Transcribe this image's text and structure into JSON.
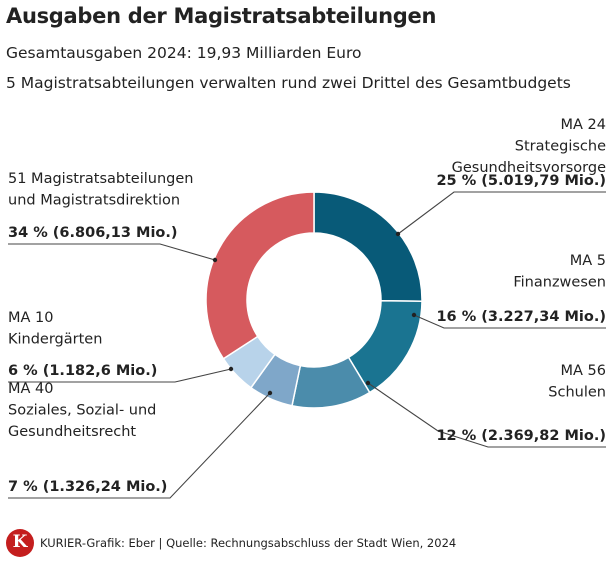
{
  "header": {
    "title": "Ausgaben der Magistratsabteilungen",
    "subtitle1": "Gesamtausgaben 2024: 19,93 Milliarden Euro",
    "subtitle2": "5 Magistratsabteilungen verwalten rund zwei Drittel des Gesamtbudgets"
  },
  "footer": {
    "logo_letter": "K",
    "logo_color": "#c41e1e",
    "source": "KURIER-Grafik: Eber | Quelle: Rechnungsabschluss der Stadt Wien, 2024"
  },
  "chart_data": {
    "type": "pie",
    "variant": "donut",
    "title": "Ausgaben der Magistratsabteilungen",
    "total": "19,93 Milliarden Euro",
    "slices": [
      {
        "name": "MA 24",
        "label_lines": [
          "MA 24",
          "Strategische",
          "Gesundheitsvorsorge"
        ],
        "percent": 25,
        "amount": "25 % (5.019,79 Mio.)",
        "amount_mio": 5019.79,
        "color": "#085a78"
      },
      {
        "name": "MA 5",
        "label_lines": [
          "MA 5",
          "Finanzwesen"
        ],
        "percent": 16,
        "amount": "16 % (3.227,34 Mio.)",
        "amount_mio": 3227.34,
        "color": "#1a7491"
      },
      {
        "name": "MA 56",
        "label_lines": [
          "MA 56",
          "Schulen"
        ],
        "percent": 12,
        "amount": "12 % (2.369,82 Mio.)",
        "amount_mio": 2369.82,
        "color": "#4b8cab"
      },
      {
        "name": "MA 40",
        "label_lines": [
          "MA 40",
          "Soziales, Sozial- und",
          "Gesundheitsrecht"
        ],
        "percent": 7,
        "amount": "7 % (1.326,24 Mio.)",
        "amount_mio": 1326.24,
        "color": "#7fa7c9"
      },
      {
        "name": "MA 10",
        "label_lines": [
          "MA 10",
          "Kindergärten"
        ],
        "percent": 6,
        "amount": "6 % (1.182,6 Mio.)",
        "amount_mio": 1182.6,
        "color": "#b8d3ea"
      },
      {
        "name": "51 Magistratsabteilungen und Magistratsdirektion",
        "label_lines": [
          "51 Magistratsabteilungen",
          "und Magistratsdirektion"
        ],
        "percent": 34,
        "amount": "34 % (6.806,13 Mio.)",
        "amount_mio": 6806.13,
        "color": "#d65a5e"
      }
    ]
  }
}
